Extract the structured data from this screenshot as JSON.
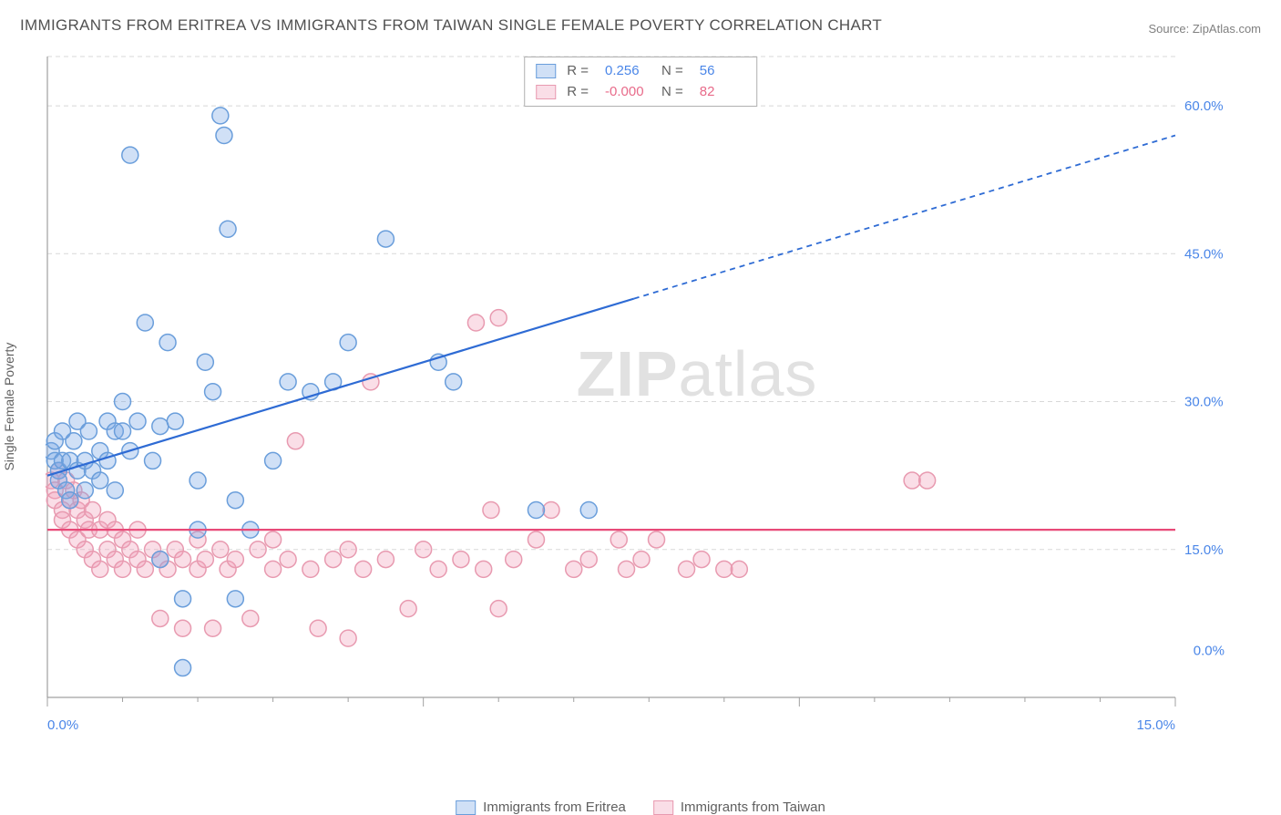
{
  "title": "IMMIGRANTS FROM ERITREA VS IMMIGRANTS FROM TAIWAN SINGLE FEMALE POVERTY CORRELATION CHART",
  "source": "Source: ZipAtlas.com",
  "ylabel": "Single Female Poverty",
  "watermark_bold": "ZIP",
  "watermark_rest": "atlas",
  "chart": {
    "type": "scatter",
    "xlim": [
      0,
      15
    ],
    "ylim": [
      0,
      65
    ],
    "xtick_major": 5,
    "xtick_minor": 1,
    "yticks": [
      15,
      30,
      45,
      60
    ],
    "ytick_labels": [
      "15.0%",
      "30.0%",
      "45.0%",
      "60.0%"
    ],
    "xtick_labels": {
      "0": "0.0%",
      "15": "15.0%"
    },
    "grid_color": "#d8d8d8",
    "axis_color": "#a0a0a0",
    "background": "#ffffff",
    "marker_radius": 9,
    "marker_stroke_width": 1.5,
    "series": [
      {
        "name": "Immigrants from Eritrea",
        "fill": "rgba(120,165,230,0.35)",
        "stroke": "#6a9edb",
        "line_color": "#2e6bd4",
        "R": "0.256",
        "N": "56",
        "trend": {
          "x1": 0,
          "y1": 22.5,
          "x2": 15,
          "y2": 57,
          "solid_until_x": 7.8
        },
        "points": [
          [
            0.05,
            25
          ],
          [
            0.1,
            24
          ],
          [
            0.1,
            26
          ],
          [
            0.15,
            23
          ],
          [
            0.15,
            22
          ],
          [
            0.2,
            24
          ],
          [
            0.2,
            27
          ],
          [
            0.25,
            21
          ],
          [
            0.3,
            24
          ],
          [
            0.3,
            20
          ],
          [
            0.35,
            26
          ],
          [
            0.4,
            23
          ],
          [
            0.4,
            28
          ],
          [
            0.5,
            24
          ],
          [
            0.5,
            21
          ],
          [
            0.55,
            27
          ],
          [
            0.6,
            23
          ],
          [
            0.7,
            25
          ],
          [
            0.7,
            22
          ],
          [
            0.8,
            24
          ],
          [
            0.8,
            28
          ],
          [
            0.9,
            21
          ],
          [
            0.9,
            27
          ],
          [
            1.0,
            27
          ],
          [
            1.0,
            30
          ],
          [
            1.1,
            25
          ],
          [
            1.1,
            55
          ],
          [
            1.2,
            28
          ],
          [
            1.3,
            38
          ],
          [
            1.4,
            24
          ],
          [
            1.5,
            27.5
          ],
          [
            1.5,
            14
          ],
          [
            1.6,
            36
          ],
          [
            1.7,
            28
          ],
          [
            1.8,
            3
          ],
          [
            1.8,
            10
          ],
          [
            2.0,
            22
          ],
          [
            2.0,
            17
          ],
          [
            2.1,
            34
          ],
          [
            2.2,
            31
          ],
          [
            2.3,
            59
          ],
          [
            2.35,
            57
          ],
          [
            2.4,
            47.5
          ],
          [
            2.5,
            20
          ],
          [
            2.5,
            10
          ],
          [
            2.7,
            17
          ],
          [
            3.0,
            24
          ],
          [
            3.2,
            32
          ],
          [
            3.5,
            31
          ],
          [
            3.8,
            32
          ],
          [
            4.0,
            36
          ],
          [
            4.5,
            46.5
          ],
          [
            5.2,
            34
          ],
          [
            5.4,
            32
          ],
          [
            6.5,
            19
          ],
          [
            7.2,
            19
          ]
        ]
      },
      {
        "name": "Immigrants from Taiwan",
        "fill": "rgba(240,160,185,0.35)",
        "stroke": "#e89ab0",
        "line_color": "#e84a78",
        "R": "-0.000",
        "N": "82",
        "trend": {
          "x1": 0,
          "y1": 17,
          "x2": 15,
          "y2": 17,
          "solid_until_x": 15
        },
        "points": [
          [
            0.05,
            22
          ],
          [
            0.1,
            21
          ],
          [
            0.1,
            20
          ],
          [
            0.15,
            23
          ],
          [
            0.2,
            19
          ],
          [
            0.2,
            18
          ],
          [
            0.25,
            22
          ],
          [
            0.3,
            20
          ],
          [
            0.3,
            17
          ],
          [
            0.35,
            21
          ],
          [
            0.4,
            19
          ],
          [
            0.4,
            16
          ],
          [
            0.45,
            20
          ],
          [
            0.5,
            18
          ],
          [
            0.5,
            15
          ],
          [
            0.55,
            17
          ],
          [
            0.6,
            19
          ],
          [
            0.6,
            14
          ],
          [
            0.7,
            17
          ],
          [
            0.7,
            13
          ],
          [
            0.8,
            18
          ],
          [
            0.8,
            15
          ],
          [
            0.9,
            14
          ],
          [
            0.9,
            17
          ],
          [
            1.0,
            16
          ],
          [
            1.0,
            13
          ],
          [
            1.1,
            15
          ],
          [
            1.2,
            14
          ],
          [
            1.2,
            17
          ],
          [
            1.3,
            13
          ],
          [
            1.4,
            15
          ],
          [
            1.5,
            14
          ],
          [
            1.5,
            8
          ],
          [
            1.6,
            13
          ],
          [
            1.7,
            15
          ],
          [
            1.8,
            14
          ],
          [
            1.8,
            7
          ],
          [
            2.0,
            16
          ],
          [
            2.0,
            13
          ],
          [
            2.1,
            14
          ],
          [
            2.2,
            7
          ],
          [
            2.3,
            15
          ],
          [
            2.4,
            13
          ],
          [
            2.5,
            14
          ],
          [
            2.7,
            8
          ],
          [
            2.8,
            15
          ],
          [
            3.0,
            13
          ],
          [
            3.0,
            16
          ],
          [
            3.2,
            14
          ],
          [
            3.3,
            26
          ],
          [
            3.5,
            13
          ],
          [
            3.6,
            7
          ],
          [
            3.8,
            14
          ],
          [
            4.0,
            15
          ],
          [
            4.0,
            6
          ],
          [
            4.2,
            13
          ],
          [
            4.3,
            32
          ],
          [
            4.5,
            14
          ],
          [
            4.8,
            9
          ],
          [
            5.0,
            15
          ],
          [
            5.2,
            13
          ],
          [
            5.5,
            14
          ],
          [
            5.7,
            38
          ],
          [
            5.8,
            13
          ],
          [
            5.9,
            19
          ],
          [
            6.0,
            38.5
          ],
          [
            6.0,
            9
          ],
          [
            6.2,
            14
          ],
          [
            6.5,
            16
          ],
          [
            6.7,
            19
          ],
          [
            7.0,
            13
          ],
          [
            7.2,
            14
          ],
          [
            7.6,
            16
          ],
          [
            7.7,
            13
          ],
          [
            7.9,
            14
          ],
          [
            8.1,
            16
          ],
          [
            8.5,
            13
          ],
          [
            8.7,
            14
          ],
          [
            9.0,
            13
          ],
          [
            9.2,
            13
          ],
          [
            11.5,
            22
          ],
          [
            11.7,
            22
          ]
        ]
      }
    ]
  },
  "legend": {
    "stats_prefix_R": "R = ",
    "stats_prefix_N": "N = "
  }
}
